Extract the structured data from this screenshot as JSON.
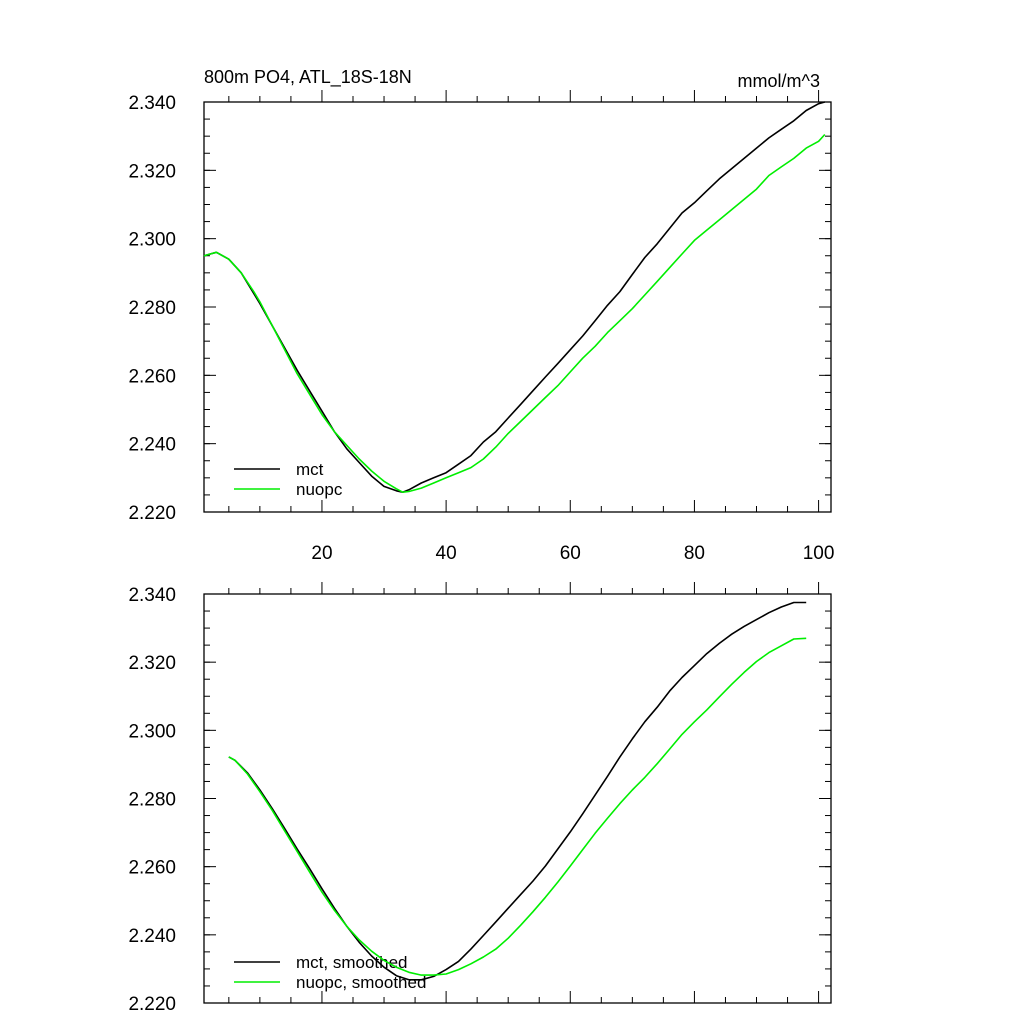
{
  "chart_data": [
    {
      "type": "line",
      "title": "800m PO4, ATL_18S-18N",
      "units": "mmol/m^3",
      "xlabel": "",
      "ylabel": "",
      "xlim": [
        1,
        102
      ],
      "ylim": [
        2.22,
        2.34
      ],
      "xticks": [
        20,
        40,
        60,
        80,
        100
      ],
      "xtick_labels": [
        "20",
        "40",
        "60",
        "80",
        "100"
      ],
      "yticks": [
        2.22,
        2.24,
        2.26,
        2.28,
        2.3,
        2.32,
        2.34
      ],
      "ytick_labels": [
        "2.220",
        "2.240",
        "2.260",
        "2.280",
        "2.300",
        "2.320",
        "2.340"
      ],
      "grid": false,
      "legend_position": "bottom-left",
      "series": [
        {
          "name": "mct",
          "color": "#000000",
          "x": [
            1,
            2,
            3,
            5,
            7,
            9,
            10,
            12,
            14,
            16,
            18,
            20,
            22,
            24,
            26,
            28,
            30,
            32,
            33,
            34,
            36,
            38,
            40,
            42,
            44,
            46,
            48,
            50,
            52,
            54,
            56,
            58,
            60,
            62,
            64,
            66,
            68,
            70,
            72,
            74,
            76,
            78,
            80,
            82,
            84,
            86,
            88,
            90,
            92,
            94,
            96,
            98,
            100,
            101
          ],
          "y": [
            2.295,
            2.2955,
            2.296,
            2.294,
            2.29,
            2.284,
            2.281,
            2.2745,
            2.268,
            2.2615,
            2.2555,
            2.2495,
            2.2435,
            2.2385,
            2.2345,
            2.2305,
            2.2275,
            2.2262,
            2.2258,
            2.2265,
            2.2285,
            2.23,
            2.2315,
            2.234,
            2.2365,
            2.2405,
            2.2435,
            2.2475,
            2.2515,
            2.2555,
            2.2595,
            2.2635,
            2.2675,
            2.2715,
            2.276,
            2.2805,
            2.2845,
            2.2895,
            2.2945,
            2.2985,
            2.303,
            2.3075,
            2.3105,
            2.314,
            2.3175,
            2.3205,
            2.3235,
            2.3265,
            2.3295,
            2.332,
            2.3345,
            2.3375,
            2.3395,
            2.34
          ]
        },
        {
          "name": "nuopc",
          "color": "#00ee00",
          "x": [
            1,
            2,
            3,
            5,
            7,
            9,
            10,
            12,
            14,
            16,
            18,
            20,
            22,
            24,
            26,
            28,
            30,
            32,
            33,
            34,
            36,
            38,
            40,
            42,
            44,
            46,
            48,
            50,
            52,
            54,
            56,
            58,
            60,
            62,
            64,
            66,
            68,
            70,
            72,
            74,
            76,
            78,
            80,
            82,
            84,
            86,
            88,
            90,
            92,
            94,
            96,
            98,
            100,
            101
          ],
          "y": [
            2.295,
            2.2955,
            2.296,
            2.294,
            2.29,
            2.2845,
            2.2815,
            2.2745,
            2.2675,
            2.2605,
            2.2545,
            2.2485,
            2.2435,
            2.2395,
            2.2355,
            2.232,
            2.229,
            2.2268,
            2.2258,
            2.226,
            2.227,
            2.2285,
            2.23,
            2.2315,
            2.233,
            2.2355,
            2.239,
            2.243,
            2.2465,
            2.25,
            2.2535,
            2.257,
            2.261,
            2.265,
            2.2685,
            2.2725,
            2.276,
            2.2795,
            2.2835,
            2.2875,
            2.2915,
            2.2955,
            2.2995,
            2.3025,
            2.3055,
            2.3085,
            2.3115,
            2.3145,
            2.3185,
            2.321,
            2.3235,
            2.3265,
            2.3285,
            2.3305
          ]
        }
      ]
    },
    {
      "type": "line",
      "title": "",
      "units": "",
      "xlabel": "",
      "ylabel": "",
      "xlim": [
        1,
        102
      ],
      "ylim": [
        2.22,
        2.34
      ],
      "xticks": [
        20,
        40,
        60,
        80,
        100
      ],
      "xtick_labels": [],
      "yticks": [
        2.22,
        2.24,
        2.26,
        2.28,
        2.3,
        2.32,
        2.34
      ],
      "ytick_labels": [
        "2.220",
        "2.240",
        "2.260",
        "2.280",
        "2.300",
        "2.320",
        "2.340"
      ],
      "grid": false,
      "legend_position": "bottom-left",
      "series": [
        {
          "name": "mct, smoothed",
          "color": "#000000",
          "x": [
            5,
            6,
            8,
            10,
            12,
            14,
            16,
            18,
            20,
            22,
            24,
            26,
            28,
            30,
            32,
            34,
            36,
            38,
            40,
            42,
            44,
            46,
            48,
            50,
            52,
            54,
            56,
            58,
            60,
            62,
            64,
            66,
            68,
            70,
            72,
            74,
            76,
            78,
            80,
            82,
            84,
            86,
            88,
            90,
            92,
            94,
            96,
            98
          ],
          "y": [
            2.2922,
            2.2912,
            2.2875,
            2.2825,
            2.277,
            2.2712,
            2.2652,
            2.2595,
            2.2535,
            2.2478,
            2.2425,
            2.2378,
            2.2338,
            2.2305,
            2.228,
            2.2268,
            2.2268,
            2.2278,
            2.2298,
            2.2322,
            2.2358,
            2.2398,
            2.2438,
            2.2478,
            2.2518,
            2.2558,
            2.2602,
            2.2652,
            2.2702,
            2.2755,
            2.281,
            2.2865,
            2.2922,
            2.2975,
            2.3025,
            2.3068,
            2.3115,
            2.3155,
            2.319,
            2.3225,
            2.3255,
            2.3282,
            2.3305,
            2.3325,
            2.3345,
            2.3362,
            2.3375,
            2.3375
          ]
        },
        {
          "name": "nuopc, smoothed",
          "color": "#00ee00",
          "x": [
            5,
            6,
            8,
            10,
            12,
            14,
            16,
            18,
            20,
            22,
            24,
            26,
            28,
            30,
            32,
            34,
            36,
            38,
            40,
            42,
            44,
            46,
            48,
            50,
            52,
            54,
            56,
            58,
            60,
            62,
            64,
            66,
            68,
            70,
            72,
            74,
            76,
            78,
            80,
            82,
            84,
            86,
            88,
            90,
            92,
            94,
            96,
            98
          ],
          "y": [
            2.2922,
            2.2912,
            2.2872,
            2.282,
            2.2765,
            2.2705,
            2.2645,
            2.2585,
            2.2525,
            2.2472,
            2.2425,
            2.2385,
            2.2352,
            2.2325,
            2.2305,
            2.229,
            2.2282,
            2.2282,
            2.2285,
            2.2298,
            2.2315,
            2.2335,
            2.2358,
            2.239,
            2.2428,
            2.2468,
            2.251,
            2.2555,
            2.2602,
            2.265,
            2.2698,
            2.2742,
            2.2785,
            2.2825,
            2.2862,
            2.2902,
            2.2945,
            2.2988,
            2.3025,
            2.306,
            2.3098,
            2.3135,
            2.317,
            2.3202,
            2.3228,
            2.3248,
            2.3268,
            2.327
          ]
        }
      ]
    }
  ]
}
